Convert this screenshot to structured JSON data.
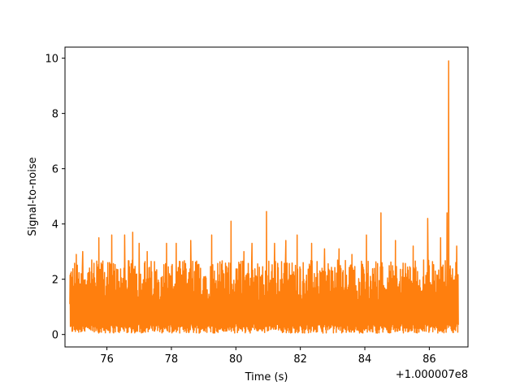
{
  "chart_data": {
    "type": "line",
    "title": "",
    "xlabel": "Time (s)",
    "ylabel": "Signal-to-noise",
    "x_offset_label": "+1.000007e8",
    "xlim": [
      74.7,
      87.2
    ],
    "ylim": [
      -0.45,
      10.4
    ],
    "x_ticks": [
      76,
      78,
      80,
      82,
      84,
      86
    ],
    "x_tick_labels": [
      "76",
      "78",
      "80",
      "82",
      "84",
      "86"
    ],
    "y_ticks": [
      0,
      2,
      4,
      6,
      8,
      10
    ],
    "y_tick_labels": [
      "0",
      "2",
      "4",
      "6",
      "8",
      "10"
    ],
    "grid": false,
    "series": [
      {
        "color": "#ff7f0e",
        "x_range": [
          74.85,
          86.9
        ],
        "noise_floor": 0.05,
        "typical_max": 2.7,
        "peaks": [
          {
            "x": 75.05,
            "y": 2.9
          },
          {
            "x": 75.25,
            "y": 3.0
          },
          {
            "x": 75.75,
            "y": 3.5
          },
          {
            "x": 76.15,
            "y": 3.6
          },
          {
            "x": 76.55,
            "y": 3.6
          },
          {
            "x": 76.8,
            "y": 3.7
          },
          {
            "x": 77.0,
            "y": 3.3
          },
          {
            "x": 77.25,
            "y": 3.0
          },
          {
            "x": 77.85,
            "y": 3.3
          },
          {
            "x": 78.15,
            "y": 3.3
          },
          {
            "x": 78.6,
            "y": 3.4
          },
          {
            "x": 79.25,
            "y": 3.6
          },
          {
            "x": 79.85,
            "y": 4.1
          },
          {
            "x": 80.25,
            "y": 3.0
          },
          {
            "x": 80.5,
            "y": 3.3
          },
          {
            "x": 80.95,
            "y": 4.45
          },
          {
            "x": 81.2,
            "y": 3.3
          },
          {
            "x": 81.55,
            "y": 3.4
          },
          {
            "x": 81.9,
            "y": 3.6
          },
          {
            "x": 82.35,
            "y": 3.3
          },
          {
            "x": 82.75,
            "y": 3.1
          },
          {
            "x": 83.2,
            "y": 3.1
          },
          {
            "x": 83.6,
            "y": 2.9
          },
          {
            "x": 84.05,
            "y": 3.6
          },
          {
            "x": 84.5,
            "y": 4.4
          },
          {
            "x": 84.95,
            "y": 3.4
          },
          {
            "x": 85.5,
            "y": 3.2
          },
          {
            "x": 85.95,
            "y": 4.2
          },
          {
            "x": 86.35,
            "y": 3.5
          },
          {
            "x": 86.55,
            "y": 4.4
          },
          {
            "x": 86.6,
            "y": 9.9
          },
          {
            "x": 86.85,
            "y": 3.2
          }
        ]
      }
    ]
  }
}
